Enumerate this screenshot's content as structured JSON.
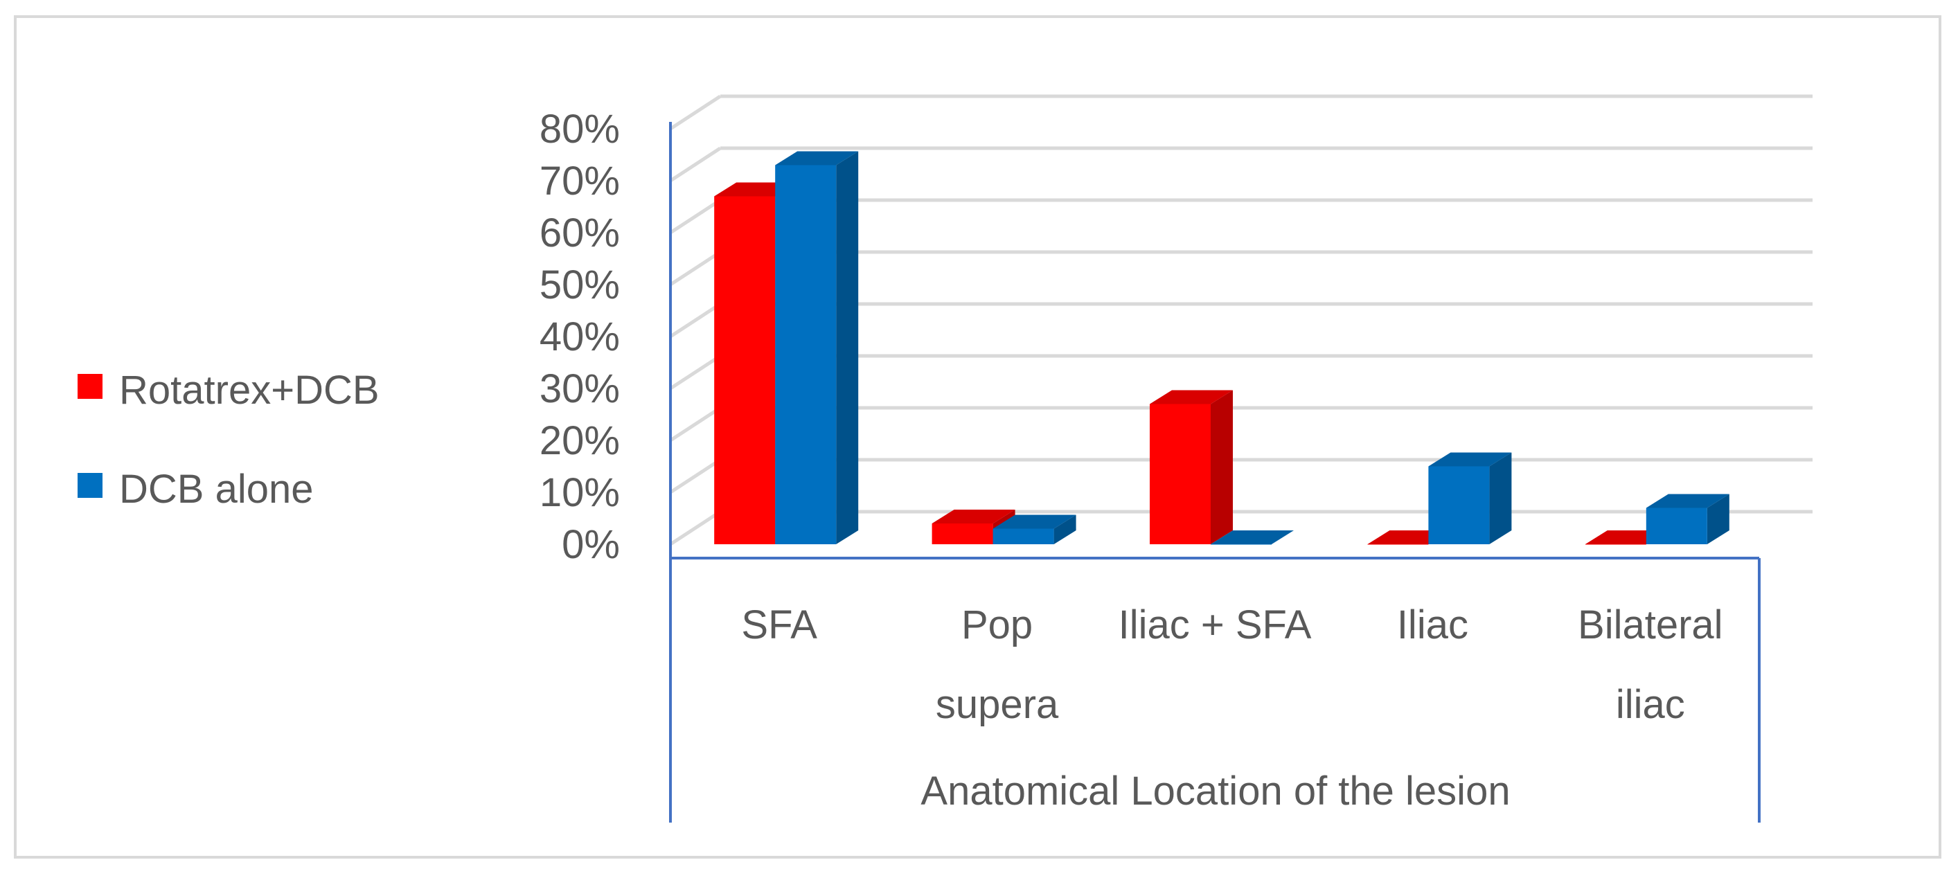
{
  "chart_data": {
    "type": "bar",
    "style": "3d-clustered-column",
    "title": "",
    "xlabel": "Anatomical Location of the lesion",
    "ylabel": "",
    "categories": [
      [
        "SFA"
      ],
      [
        "Pop",
        "supera"
      ],
      [
        "Iliac + SFA"
      ],
      [
        "Iliac"
      ],
      [
        "Bilateral",
        "iliac"
      ]
    ],
    "series": [
      {
        "name": "Rotatrex+DCB",
        "color": "#ff0000",
        "values": [
          67,
          4,
          27,
          0,
          0
        ]
      },
      {
        "name": "DCB alone",
        "color": "#0070c0",
        "values": [
          73,
          3,
          0,
          15,
          7
        ]
      }
    ],
    "ylim": [
      0,
      80
    ],
    "yticks": [
      "0%",
      "10%",
      "20%",
      "30%",
      "40%",
      "50%",
      "60%",
      "70%",
      "80%"
    ],
    "grid": true,
    "legend_position": "left"
  }
}
